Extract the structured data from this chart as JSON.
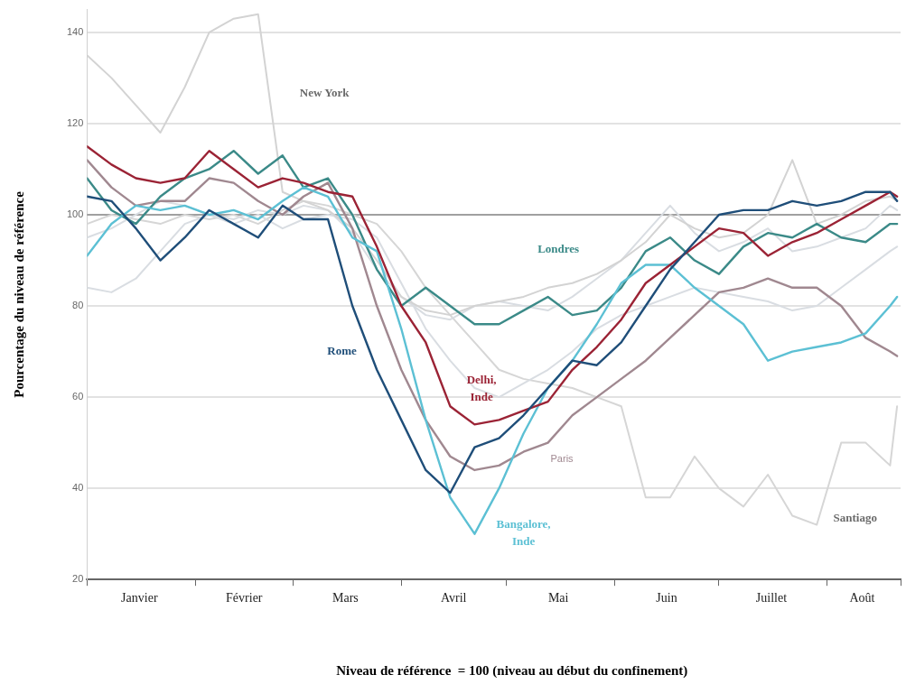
{
  "chart_data": {
    "type": "line",
    "xlabel": "Niveau de référence  = 100 (niveau au début du confinement)",
    "ylabel": "Pourcentage du niveau de référence",
    "x": [
      "--01-01",
      "--01-08",
      "--01-15",
      "--01-22",
      "--01-29",
      "--02-05",
      "--02-12",
      "--02-19",
      "--02-26",
      "--03-04",
      "--03-11",
      "--03-18",
      "--03-25",
      "--04-01",
      "--04-08",
      "--04-15",
      "--04-22",
      "--04-29",
      "--05-06",
      "--05-13",
      "--05-20",
      "--05-27",
      "--06-03",
      "--06-10",
      "--06-17",
      "--06-24",
      "--07-01",
      "--07-08",
      "--07-15",
      "--07-22",
      "--07-29",
      "--08-05",
      "--08-12",
      "--08-19",
      "--08-21"
    ],
    "xlim": [
      "--01-01",
      "--08-22"
    ],
    "xticks": [
      {
        "value": "--01-01",
        "label": null
      },
      {
        "value": "--01-16",
        "label": "Janvier"
      },
      {
        "value": "--02-01",
        "label": null
      },
      {
        "value": "--02-15",
        "label": "Février"
      },
      {
        "value": "--03-01",
        "label": null
      },
      {
        "value": "--03-16",
        "label": "Mars"
      },
      {
        "value": "--04-01",
        "label": null
      },
      {
        "value": "--04-16",
        "label": "Avril"
      },
      {
        "value": "--05-01",
        "label": null
      },
      {
        "value": "--05-16",
        "label": "Mai"
      },
      {
        "value": "--06-01",
        "label": null
      },
      {
        "value": "--06-16",
        "label": "Juin"
      },
      {
        "value": "--07-01",
        "label": null
      },
      {
        "value": "--07-16",
        "label": "Juillet"
      },
      {
        "value": "--08-01",
        "label": null
      },
      {
        "value": "--08-11",
        "label": "Août"
      },
      {
        "value": "--08-22",
        "label": null
      }
    ],
    "ylim": [
      20,
      145
    ],
    "yticks": [
      20,
      40,
      60,
      80,
      100,
      120,
      140
    ],
    "grid": "y",
    "tick_labels": "xy",
    "legend": false,
    "marker": "none",
    "line_style": "solid",
    "ref_lines": [
      {
        "axis": "y",
        "value": 100,
        "color": "#8a8a8a"
      }
    ],
    "series": [
      {
        "name": "Santiago",
        "color": "#d6d6d6",
        "values": [
          98,
          100,
          99,
          98,
          100,
          99,
          100,
          98,
          101,
          103,
          102,
          100,
          98,
          92,
          84,
          78,
          72,
          66,
          64,
          63,
          62,
          60,
          58,
          38,
          38,
          47,
          40,
          36,
          43,
          34,
          32,
          50,
          50,
          45,
          58
        ]
      },
      {
        "color": "#d9dde2",
        "values": [
          84,
          83,
          86,
          92,
          98,
          100,
          99,
          101,
          100,
          102,
          101,
          96,
          88,
          82,
          78,
          77,
          80,
          81,
          80,
          79,
          82,
          86,
          90,
          96,
          102,
          96,
          92,
          94,
          97,
          92,
          93,
          95,
          97,
          102,
          101
        ]
      },
      {
        "color": "#d9dde2",
        "values": [
          95,
          97,
          100,
          103,
          102,
          100,
          98,
          100,
          97,
          99,
          100,
          99,
          95,
          85,
          75,
          68,
          62,
          60,
          63,
          66,
          70,
          75,
          78,
          80,
          82,
          84,
          83,
          82,
          81,
          79,
          80,
          84,
          88,
          92,
          93
        ]
      },
      {
        "name": "New York",
        "color": "#d3d3d3",
        "values": [
          135,
          130,
          124,
          118,
          128,
          140,
          143,
          144,
          105,
          103,
          101,
          97,
          90,
          82,
          79,
          78,
          80,
          81,
          82,
          84,
          85,
          87,
          90,
          94,
          100,
          97,
          95,
          96,
          100,
          112,
          98,
          100,
          103,
          104,
          103
        ]
      },
      {
        "name": "Paris",
        "color": "#a08890",
        "values": [
          112,
          106,
          102,
          103,
          103,
          108,
          107,
          103,
          100,
          104,
          107,
          97,
          80,
          66,
          55,
          47,
          44,
          45,
          48,
          50,
          56,
          60,
          64,
          68,
          73,
          78,
          83,
          84,
          86,
          84,
          84,
          80,
          73,
          70,
          69
        ]
      },
      {
        "name": "Londres",
        "color": "#3b8a88",
        "values": [
          108,
          101,
          98,
          104,
          108,
          110,
          114,
          109,
          113,
          106,
          108,
          100,
          88,
          80,
          84,
          80,
          76,
          76,
          79,
          82,
          78,
          79,
          84,
          92,
          95,
          90,
          87,
          93,
          96,
          95,
          98,
          95,
          94,
          98,
          98
        ]
      },
      {
        "name": "Bangalore, Inde",
        "color": "#5cc0d4",
        "values": [
          91,
          98,
          102,
          101,
          102,
          100,
          101,
          99,
          103,
          106,
          104,
          95,
          92,
          75,
          55,
          38,
          30,
          40,
          52,
          62,
          68,
          76,
          85,
          89,
          89,
          84,
          80,
          76,
          68,
          70,
          71,
          72,
          74,
          80,
          82
        ]
      },
      {
        "name": "Delhi, Inde",
        "color": "#9b2335",
        "values": [
          115,
          111,
          108,
          107,
          108,
          114,
          110,
          106,
          108,
          107,
          105,
          104,
          93,
          80,
          72,
          58,
          54,
          55,
          57,
          59,
          66,
          71,
          77,
          85,
          89,
          93,
          97,
          96,
          91,
          94,
          96,
          99,
          102,
          105,
          104
        ]
      },
      {
        "name": "Rome",
        "color": "#1f4e79",
        "values": [
          104,
          103,
          97,
          90,
          95,
          101,
          98,
          95,
          102,
          99,
          99,
          80,
          66,
          55,
          44,
          39,
          49,
          51,
          56,
          62,
          68,
          67,
          72,
          80,
          88,
          94,
          100,
          101,
          101,
          103,
          102,
          103,
          105,
          105,
          103
        ]
      }
    ]
  }
}
